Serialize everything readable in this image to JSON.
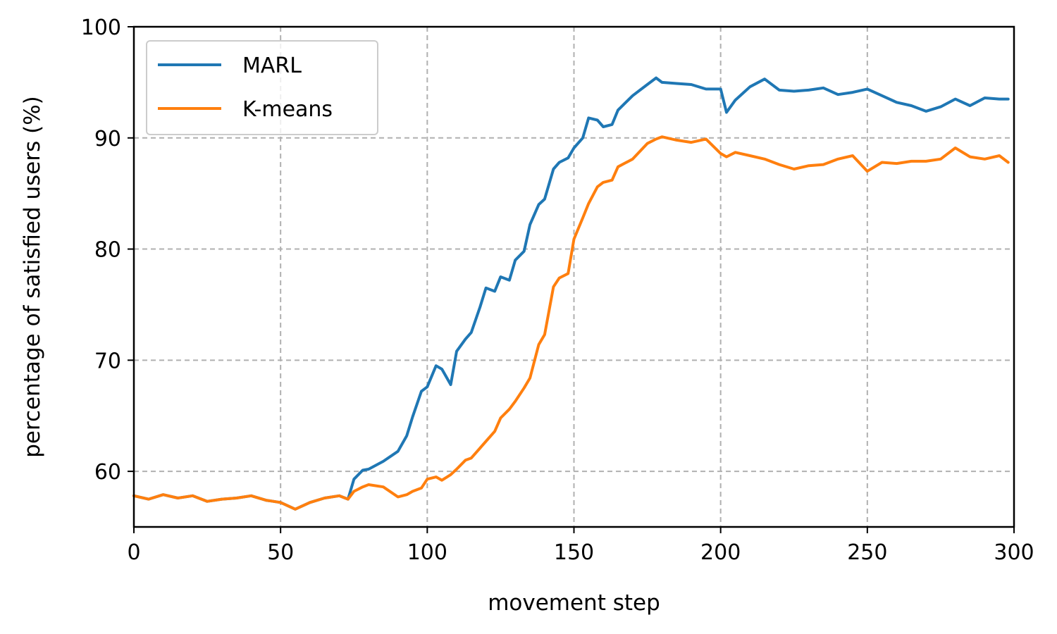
{
  "chart_data": {
    "type": "line",
    "title": "",
    "xlabel": "movement step",
    "ylabel": "percentage of satisfied users (%)",
    "xlim": [
      0,
      300
    ],
    "ylim": [
      55,
      100
    ],
    "xticks": [
      0,
      50,
      100,
      150,
      200,
      250,
      300
    ],
    "yticks": [
      60,
      70,
      80,
      90,
      100
    ],
    "grid": true,
    "legend_position": "top-left",
    "series": [
      {
        "name": "MARL",
        "color": "#1f77b4",
        "x": [
          0,
          5,
          10,
          15,
          20,
          25,
          30,
          35,
          40,
          45,
          50,
          55,
          60,
          65,
          70,
          73,
          75,
          78,
          80,
          85,
          90,
          93,
          95,
          98,
          100,
          103,
          105,
          108,
          110,
          113,
          115,
          118,
          120,
          123,
          125,
          128,
          130,
          133,
          135,
          138,
          140,
          143,
          145,
          148,
          150,
          153,
          155,
          158,
          160,
          163,
          165,
          170,
          175,
          178,
          180,
          185,
          190,
          195,
          200,
          202,
          205,
          210,
          215,
          220,
          225,
          230,
          235,
          240,
          245,
          250,
          255,
          260,
          265,
          270,
          275,
          280,
          285,
          290,
          295,
          298
        ],
        "values": [
          57.8,
          57.5,
          57.9,
          57.6,
          57.8,
          57.3,
          57.5,
          57.6,
          57.8,
          57.4,
          57.2,
          56.6,
          57.2,
          57.6,
          57.8,
          57.5,
          59.3,
          60.1,
          60.2,
          60.9,
          61.8,
          63.2,
          64.9,
          67.2,
          67.6,
          69.5,
          69.2,
          67.8,
          70.8,
          71.9,
          72.5,
          74.8,
          76.5,
          76.2,
          77.5,
          77.2,
          79.0,
          79.8,
          82.2,
          84.0,
          84.5,
          87.2,
          87.8,
          88.2,
          89.1,
          90.0,
          91.8,
          91.6,
          91.0,
          91.2,
          92.5,
          93.8,
          94.8,
          95.4,
          95.0,
          94.9,
          94.8,
          94.4,
          94.4,
          92.3,
          93.4,
          94.6,
          95.3,
          94.3,
          94.2,
          94.3,
          94.5,
          93.9,
          94.1,
          94.4,
          93.8,
          93.2,
          92.9,
          92.4,
          92.8,
          93.5,
          92.9,
          93.6,
          93.5,
          93.5
        ]
      },
      {
        "name": "K-means",
        "color": "#ff7f0e",
        "x": [
          0,
          5,
          10,
          15,
          20,
          25,
          30,
          35,
          40,
          45,
          50,
          55,
          60,
          65,
          70,
          73,
          75,
          78,
          80,
          85,
          90,
          93,
          95,
          98,
          100,
          103,
          105,
          108,
          110,
          113,
          115,
          118,
          120,
          123,
          125,
          128,
          130,
          133,
          135,
          138,
          140,
          143,
          145,
          148,
          150,
          153,
          155,
          158,
          160,
          163,
          165,
          170,
          175,
          178,
          180,
          185,
          190,
          195,
          200,
          202,
          205,
          210,
          215,
          220,
          225,
          230,
          235,
          240,
          245,
          250,
          255,
          260,
          265,
          270,
          275,
          280,
          285,
          290,
          295,
          298
        ],
        "values": [
          57.8,
          57.5,
          57.9,
          57.6,
          57.8,
          57.3,
          57.5,
          57.6,
          57.8,
          57.4,
          57.2,
          56.6,
          57.2,
          57.6,
          57.8,
          57.5,
          58.2,
          58.6,
          58.8,
          58.6,
          57.7,
          57.9,
          58.2,
          58.5,
          59.3,
          59.5,
          59.2,
          59.7,
          60.2,
          61.0,
          61.2,
          62.1,
          62.7,
          63.6,
          64.8,
          65.6,
          66.3,
          67.5,
          68.4,
          71.4,
          72.3,
          76.6,
          77.4,
          77.8,
          80.9,
          82.8,
          84.1,
          85.6,
          86.0,
          86.2,
          87.4,
          88.1,
          89.5,
          89.9,
          90.1,
          89.8,
          89.6,
          89.9,
          88.6,
          88.3,
          88.7,
          88.4,
          88.1,
          87.6,
          87.2,
          87.5,
          87.6,
          88.1,
          88.4,
          87.0,
          87.8,
          87.7,
          87.9,
          87.9,
          88.1,
          89.1,
          88.3,
          88.1,
          88.4,
          87.8
        ]
      }
    ]
  }
}
